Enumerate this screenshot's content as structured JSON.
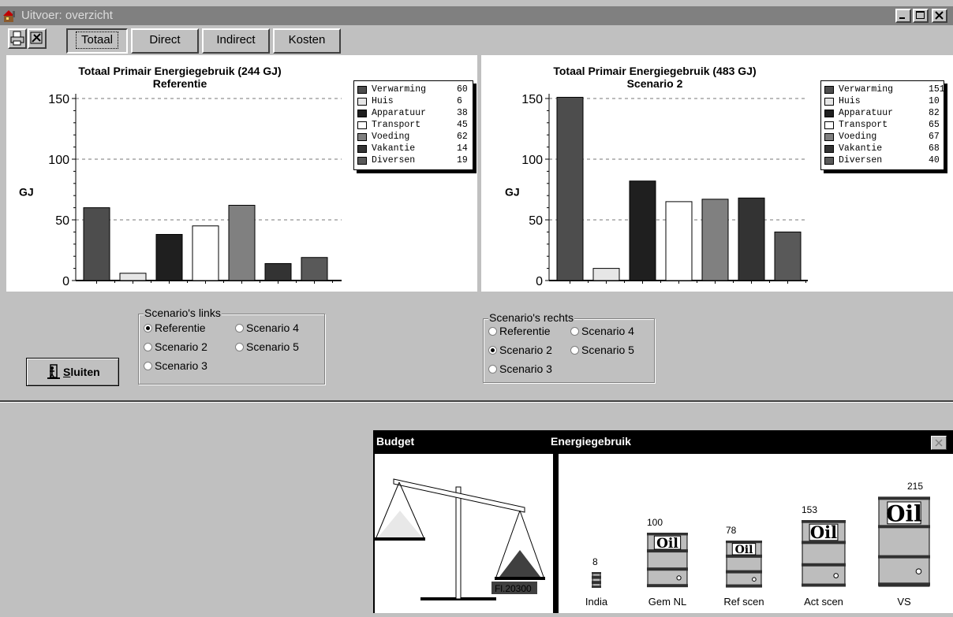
{
  "window": {
    "title": "Uitvoer: overzicht"
  },
  "toolbar": {
    "icons": [
      "printer-icon",
      "settings-icon"
    ],
    "tabs": [
      {
        "label": "Totaal",
        "selected": true
      },
      {
        "label": "Direct",
        "selected": false
      },
      {
        "label": "Indirect",
        "selected": false
      },
      {
        "label": "Kosten",
        "selected": false
      }
    ]
  },
  "chart_data": [
    {
      "type": "bar",
      "title": "Totaal Primair Energiegebruik (244 GJ)",
      "subtitle": "Referentie",
      "ylabel": "GJ",
      "ylim": [
        0,
        150
      ],
      "yticks": [
        0,
        50,
        100,
        150
      ],
      "grid": true,
      "legend_position": "top-right",
      "categories": [
        "Verwarming",
        "Huis",
        "Apparatuur",
        "Transport",
        "Voeding",
        "Vakantie",
        "Diversen"
      ],
      "values": [
        60,
        6,
        38,
        45,
        62,
        14,
        19
      ],
      "colors": [
        "#4d4d4d",
        "#e6e6e6",
        "#1f1f1f",
        "#ffffff",
        "#808080",
        "#333333",
        "#595959"
      ]
    },
    {
      "type": "bar",
      "title": "Totaal Primair Energiegebruik (483 GJ)",
      "subtitle": "Scenario 2",
      "ylabel": "GJ",
      "ylim": [
        0,
        150
      ],
      "yticks": [
        0,
        50,
        100,
        150
      ],
      "grid": true,
      "legend_position": "top-right",
      "categories": [
        "Verwarming",
        "Huis",
        "Apparatuur",
        "Transport",
        "Voeding",
        "Vakantie",
        "Diversen"
      ],
      "values": [
        151,
        10,
        82,
        65,
        67,
        68,
        40
      ],
      "colors": [
        "#4d4d4d",
        "#e6e6e6",
        "#1f1f1f",
        "#ffffff",
        "#808080",
        "#333333",
        "#595959"
      ]
    }
  ],
  "scenarios_left": {
    "title": "Scenario's links",
    "options": [
      "Referentie",
      "Scenario 4",
      "Scenario 2",
      "Scenario 5",
      "Scenario 3"
    ],
    "selected": "Referentie"
  },
  "scenarios_right": {
    "title": "Scenario's rechts",
    "options": [
      "Referentie",
      "Scenario 4",
      "Scenario 2",
      "Scenario 5",
      "Scenario 3"
    ],
    "selected": "Scenario 2"
  },
  "close_button": {
    "label_prefix": "",
    "label_accel": "S",
    "label_rest": "luiten"
  },
  "energy_window": {
    "budget_title": "Budget",
    "energy_title": "Energiegebruik",
    "budget_amount": "Fl.20300",
    "barrels": [
      {
        "label": "India",
        "value": "8"
      },
      {
        "label": "Gem NL",
        "value": "100"
      },
      {
        "label": "Ref scen",
        "value": "78"
      },
      {
        "label": "Act scen",
        "value": "153"
      },
      {
        "label": "VS",
        "value": "215"
      }
    ],
    "barrel_text": "Oil"
  }
}
